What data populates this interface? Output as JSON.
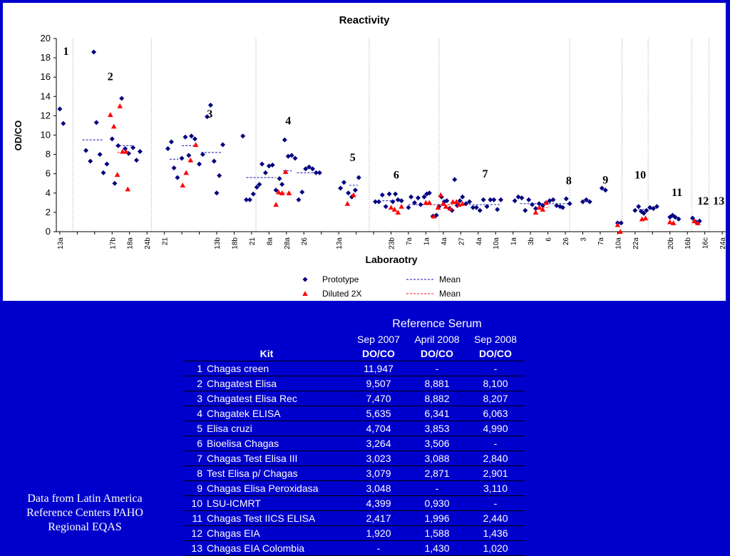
{
  "chart_data": {
    "type": "scatter",
    "title": "Reactivity",
    "xlabel": "Laboraotry",
    "ylabel": "OD/CO",
    "ylim": [
      0,
      20
    ],
    "yticks": [
      0,
      2,
      4,
      6,
      8,
      10,
      12,
      14,
      16,
      18,
      20
    ],
    "grid": false,
    "legend_position": "bottom-center",
    "legend": [
      {
        "label": "Prototype",
        "marker": "diamond",
        "color": "#000080"
      },
      {
        "label": "Mean",
        "line": "dotted",
        "color": "#4040c0"
      },
      {
        "label": "Diluted 2X",
        "marker": "triangle",
        "color": "#ff0000"
      },
      {
        "label": "Mean",
        "line": "dotted",
        "color": "#ff4040"
      }
    ],
    "x_categories": [
      "13a",
      "",
      "",
      "17b",
      "18a",
      "24b",
      "21",
      "",
      "",
      "13b",
      "18b",
      "21",
      "8a",
      "28a",
      "26",
      "",
      "13a",
      "",
      "",
      "23b",
      "7a",
      "1a",
      "4a",
      "27",
      "4a",
      "10a",
      "1a",
      "3b",
      "6",
      "26",
      "3",
      "7a",
      "10a",
      "22a",
      "",
      "20b",
      "16b",
      "16c",
      "24a",
      ""
    ],
    "kit_labels": [
      "1",
      "2",
      "3",
      "4",
      "5",
      "6",
      "7",
      "8",
      "9",
      "10",
      "11",
      "12",
      "13"
    ],
    "kit_label_positions": [
      {
        "kit": "1",
        "x": 0.35,
        "y": 18.3
      },
      {
        "kit": "2",
        "x": 2.9,
        "y": 15.7
      },
      {
        "kit": "3",
        "x": 8.6,
        "y": 11.8
      },
      {
        "kit": "4",
        "x": 13.1,
        "y": 11.1
      },
      {
        "kit": "5",
        "x": 16.8,
        "y": 7.3
      },
      {
        "kit": "6",
        "x": 19.3,
        "y": 5.5
      },
      {
        "kit": "7",
        "x": 24.4,
        "y": 5.6
      },
      {
        "kit": "8",
        "x": 29.2,
        "y": 4.9
      },
      {
        "kit": "9",
        "x": 31.3,
        "y": 5.0
      },
      {
        "kit": "10",
        "x": 33.3,
        "y": 5.5
      },
      {
        "kit": "11",
        "x": 35.4,
        "y": 3.7
      },
      {
        "kit": "12",
        "x": 36.9,
        "y": 2.8
      },
      {
        "kit": "13",
        "x": 37.8,
        "y": 2.8
      }
    ],
    "separators": [
      0.75,
      5.25,
      11.25,
      17.75,
      21.75,
      29.25,
      32.25,
      33.75,
      36.25,
      37.25
    ],
    "series": [
      {
        "name": "Prototype",
        "points": [
          [
            0.0,
            12.7
          ],
          [
            0.2,
            11.2
          ],
          [
            1.5,
            8.4
          ],
          [
            1.75,
            7.3
          ],
          [
            1.95,
            18.6
          ],
          [
            2.1,
            11.3
          ],
          [
            2.3,
            8.0
          ],
          [
            2.5,
            6.1
          ],
          [
            2.7,
            7.0
          ],
          [
            3.0,
            9.6
          ],
          [
            3.15,
            5.0
          ],
          [
            3.35,
            8.9
          ],
          [
            3.55,
            13.8
          ],
          [
            3.75,
            8.6
          ],
          [
            3.95,
            8.1
          ],
          [
            4.2,
            8.7
          ],
          [
            4.4,
            7.4
          ],
          [
            4.6,
            8.3
          ],
          [
            6.2,
            8.6
          ],
          [
            6.4,
            9.3
          ],
          [
            6.55,
            6.6
          ],
          [
            6.75,
            5.6
          ],
          [
            7.0,
            7.6
          ],
          [
            7.2,
            9.8
          ],
          [
            7.4,
            7.9
          ],
          [
            7.55,
            9.9
          ],
          [
            7.75,
            9.6
          ],
          [
            8.0,
            7.0
          ],
          [
            8.2,
            8.0
          ],
          [
            8.45,
            11.9
          ],
          [
            8.65,
            13.1
          ],
          [
            8.85,
            7.3
          ],
          [
            9.0,
            4.0
          ],
          [
            9.15,
            5.8
          ],
          [
            9.35,
            9.0
          ],
          [
            10.5,
            9.9
          ],
          [
            10.7,
            3.3
          ],
          [
            10.9,
            3.3
          ],
          [
            11.1,
            3.9
          ],
          [
            11.3,
            4.6
          ],
          [
            11.45,
            4.9
          ],
          [
            11.6,
            7.0
          ],
          [
            11.8,
            6.1
          ],
          [
            12.0,
            6.8
          ],
          [
            12.2,
            6.9
          ],
          [
            12.4,
            4.3
          ],
          [
            12.6,
            5.5
          ],
          [
            12.75,
            4.9
          ],
          [
            12.9,
            9.5
          ],
          [
            13.1,
            7.8
          ],
          [
            13.3,
            7.9
          ],
          [
            13.5,
            7.6
          ],
          [
            13.7,
            3.3
          ],
          [
            13.9,
            4.1
          ],
          [
            14.1,
            6.5
          ],
          [
            14.3,
            6.7
          ],
          [
            14.5,
            6.5
          ],
          [
            14.7,
            6.1
          ],
          [
            14.9,
            6.1
          ],
          [
            16.1,
            4.5
          ],
          [
            16.3,
            5.1
          ],
          [
            16.55,
            4.0
          ],
          [
            16.75,
            3.6
          ],
          [
            16.95,
            4.3
          ],
          [
            17.15,
            5.6
          ],
          [
            18.1,
            3.1
          ],
          [
            18.3,
            3.1
          ],
          [
            18.5,
            3.8
          ],
          [
            18.7,
            2.6
          ],
          [
            18.9,
            3.9
          ],
          [
            19.1,
            3.1
          ],
          [
            19.25,
            3.9
          ],
          [
            19.4,
            3.3
          ],
          [
            19.6,
            3.2
          ],
          [
            20.0,
            2.5
          ],
          [
            20.15,
            3.6
          ],
          [
            20.35,
            3.0
          ],
          [
            20.55,
            3.5
          ],
          [
            20.7,
            2.8
          ],
          [
            20.9,
            3.6
          ],
          [
            21.05,
            3.9
          ],
          [
            21.2,
            4.0
          ],
          [
            21.4,
            1.6
          ],
          [
            21.6,
            1.7
          ],
          [
            21.75,
            2.6
          ],
          [
            21.9,
            3.6
          ],
          [
            22.05,
            3.1
          ],
          [
            22.2,
            3.2
          ],
          [
            22.35,
            2.4
          ],
          [
            22.5,
            2.2
          ],
          [
            22.65,
            5.4
          ],
          [
            22.8,
            2.7
          ],
          [
            22.95,
            3.2
          ],
          [
            23.1,
            3.6
          ],
          [
            23.3,
            2.9
          ],
          [
            23.5,
            3.1
          ],
          [
            23.7,
            2.5
          ],
          [
            23.9,
            2.5
          ],
          [
            24.1,
            2.2
          ],
          [
            24.3,
            3.3
          ],
          [
            24.5,
            2.6
          ],
          [
            24.7,
            3.3
          ],
          [
            24.9,
            3.3
          ],
          [
            25.1,
            2.3
          ],
          [
            25.3,
            3.3
          ],
          [
            26.1,
            3.2
          ],
          [
            26.3,
            3.6
          ],
          [
            26.5,
            3.5
          ],
          [
            26.7,
            2.2
          ],
          [
            26.9,
            3.3
          ],
          [
            27.1,
            2.8
          ],
          [
            27.3,
            2.4
          ],
          [
            27.5,
            2.9
          ],
          [
            27.7,
            2.7
          ],
          [
            27.9,
            3.0
          ],
          [
            28.1,
            3.2
          ],
          [
            28.3,
            3.3
          ],
          [
            28.5,
            2.7
          ],
          [
            28.7,
            2.6
          ],
          [
            28.85,
            2.5
          ],
          [
            29.05,
            3.4
          ],
          [
            29.25,
            2.9
          ],
          [
            30.0,
            3.1
          ],
          [
            30.2,
            3.3
          ],
          [
            30.4,
            3.1
          ],
          [
            31.1,
            4.5
          ],
          [
            31.3,
            4.3
          ],
          [
            32.0,
            0.9
          ],
          [
            32.2,
            0.9
          ],
          [
            33.0,
            2.2
          ],
          [
            33.2,
            2.6
          ],
          [
            33.35,
            2.1
          ],
          [
            33.5,
            1.9
          ],
          [
            33.65,
            2.2
          ],
          [
            33.85,
            2.5
          ],
          [
            34.05,
            2.4
          ],
          [
            34.25,
            2.6
          ],
          [
            35.0,
            1.5
          ],
          [
            35.15,
            1.7
          ],
          [
            35.3,
            1.5
          ],
          [
            35.5,
            1.3
          ],
          [
            36.3,
            1.4
          ],
          [
            36.5,
            1.0
          ],
          [
            36.7,
            1.1
          ]
        ]
      },
      {
        "name": "Diluted 2X",
        "points": [
          [
            2.9,
            12.1
          ],
          [
            3.1,
            10.9
          ],
          [
            3.3,
            5.9
          ],
          [
            3.45,
            13.0
          ],
          [
            3.6,
            8.3
          ],
          [
            3.8,
            8.3
          ],
          [
            3.9,
            4.4
          ],
          [
            7.05,
            4.8
          ],
          [
            7.25,
            6.1
          ],
          [
            7.5,
            7.4
          ],
          [
            7.8,
            9.0
          ],
          [
            12.4,
            2.8
          ],
          [
            12.55,
            4.1
          ],
          [
            12.75,
            4.0
          ],
          [
            12.95,
            6.2
          ],
          [
            13.15,
            4.0
          ],
          [
            16.5,
            2.9
          ],
          [
            16.85,
            3.8
          ],
          [
            19.0,
            2.5
          ],
          [
            19.2,
            2.3
          ],
          [
            19.4,
            2.0
          ],
          [
            19.6,
            2.6
          ],
          [
            21.0,
            3.0
          ],
          [
            21.2,
            3.0
          ],
          [
            21.45,
            1.6
          ],
          [
            21.7,
            2.5
          ],
          [
            21.85,
            3.8
          ],
          [
            22.0,
            2.9
          ],
          [
            22.15,
            2.6
          ],
          [
            22.4,
            2.4
          ],
          [
            22.55,
            3.1
          ],
          [
            22.75,
            3.1
          ],
          [
            22.9,
            2.8
          ],
          [
            23.1,
            2.9
          ],
          [
            27.3,
            2.0
          ],
          [
            27.5,
            2.5
          ],
          [
            27.7,
            2.3
          ],
          [
            27.9,
            3.0
          ],
          [
            32.0,
            0.7
          ],
          [
            32.15,
            0.0
          ],
          [
            33.4,
            1.3
          ],
          [
            33.6,
            1.4
          ],
          [
            35.0,
            1.0
          ],
          [
            35.2,
            0.9
          ],
          [
            36.4,
            1.1
          ],
          [
            36.6,
            0.9
          ]
        ]
      }
    ],
    "means": {
      "Prototype": [
        {
          "x0": 1.3,
          "x1": 2.5,
          "y": 9.5
        },
        {
          "x0": 3.2,
          "x1": 4.2,
          "y": 8.9
        },
        {
          "x0": 6.3,
          "x1": 6.8,
          "y": 7.5
        },
        {
          "x0": 7.0,
          "x1": 7.8,
          "y": 8.9
        },
        {
          "x0": 8.1,
          "x1": 9.3,
          "y": 8.2
        },
        {
          "x0": 10.7,
          "x1": 12.4,
          "y": 5.6
        },
        {
          "x0": 12.8,
          "x1": 13.3,
          "y": 6.3
        },
        {
          "x0": 13.6,
          "x1": 14.6,
          "y": 6.1
        },
        {
          "x0": 16.6,
          "x1": 17.1,
          "y": 4.8
        },
        {
          "x0": 18.5,
          "x1": 19.6,
          "y": 3.2
        },
        {
          "x0": 20.0,
          "x1": 25.3,
          "y": 2.8
        },
        {
          "x0": 26.4,
          "x1": 29.2,
          "y": 2.9
        },
        {
          "x0": 30.0,
          "x1": 30.4,
          "y": 3.1
        },
        {
          "x0": 33.2,
          "x1": 34.2,
          "y": 2.3
        },
        {
          "x0": 35.0,
          "x1": 35.5,
          "y": 1.5
        }
      ],
      "Diluted 2X": [
        {
          "x0": 3.3,
          "x1": 4.0,
          "y": 8.2
        },
        {
          "x0": 12.6,
          "x1": 13.2,
          "y": 4.0
        },
        {
          "x0": 21.0,
          "x1": 23.2,
          "y": 2.8
        },
        {
          "x0": 27.5,
          "x1": 28.0,
          "y": 2.5
        }
      ]
    }
  },
  "table": {
    "title": "Reference Serum",
    "col_dates": [
      "Sep 2007",
      "April 2008",
      "Sep 2008"
    ],
    "kit_header": "Kit",
    "col_units": [
      "DO/CO",
      "DO/CO",
      "DO/CO"
    ],
    "rows": [
      {
        "n": "1",
        "kit": "Chagas creen",
        "v1": "11,947",
        "v2": "-",
        "v3": "-"
      },
      {
        "n": "2",
        "kit": "Chagatest Elisa",
        "v1": "9,507",
        "v2": "8,881",
        "v3": "8,100"
      },
      {
        "n": "3",
        "kit": "Chagatest Elisa Rec",
        "v1": "7,470",
        "v2": "8,882",
        "v3": "8,207"
      },
      {
        "n": "4",
        "kit": "Chagatek ELISA",
        "v1": "5,635",
        "v2": "6,341",
        "v3": "6,063"
      },
      {
        "n": "5",
        "kit": "Elisa cruzi",
        "v1": "4,704",
        "v2": "3,853",
        "v3": "4,990"
      },
      {
        "n": "6",
        "kit": "Bioelisa Chagas",
        "v1": "3,264",
        "v2": "3,506",
        "v3": "-"
      },
      {
        "n": "7",
        "kit": "Chagas Test Elisa III",
        "v1": "3,023",
        "v2": "3,088",
        "v3": "2,840"
      },
      {
        "n": "8",
        "kit": "Test Elisa p/ Chagas",
        "v1": "3,079",
        "v2": "2,871",
        "v3": "2,901"
      },
      {
        "n": "9",
        "kit": "Chagas Elisa Peroxidasa",
        "v1": "3,048",
        "v2": "-",
        "v3": "3,110"
      },
      {
        "n": "10",
        "kit": "LSU-ICMRT",
        "v1": "4,399",
        "v2": "0,930",
        "v3": "-"
      },
      {
        "n": "11",
        "kit": "Chagas Test IICS ELISA",
        "v1": "2,417",
        "v2": "1,996",
        "v3": "2,440"
      },
      {
        "n": "12",
        "kit": "Chagas EIA",
        "v1": "1,920",
        "v2": "1,588",
        "v3": "1,436"
      },
      {
        "n": "13",
        "kit": "Chagas EIA Colombia",
        "v1": "-",
        "v2": "1,430",
        "v3": "1,020"
      }
    ]
  },
  "source_note": [
    "Data from Latin America",
    "Reference Centers  PAHO",
    "Regional EQAS"
  ]
}
